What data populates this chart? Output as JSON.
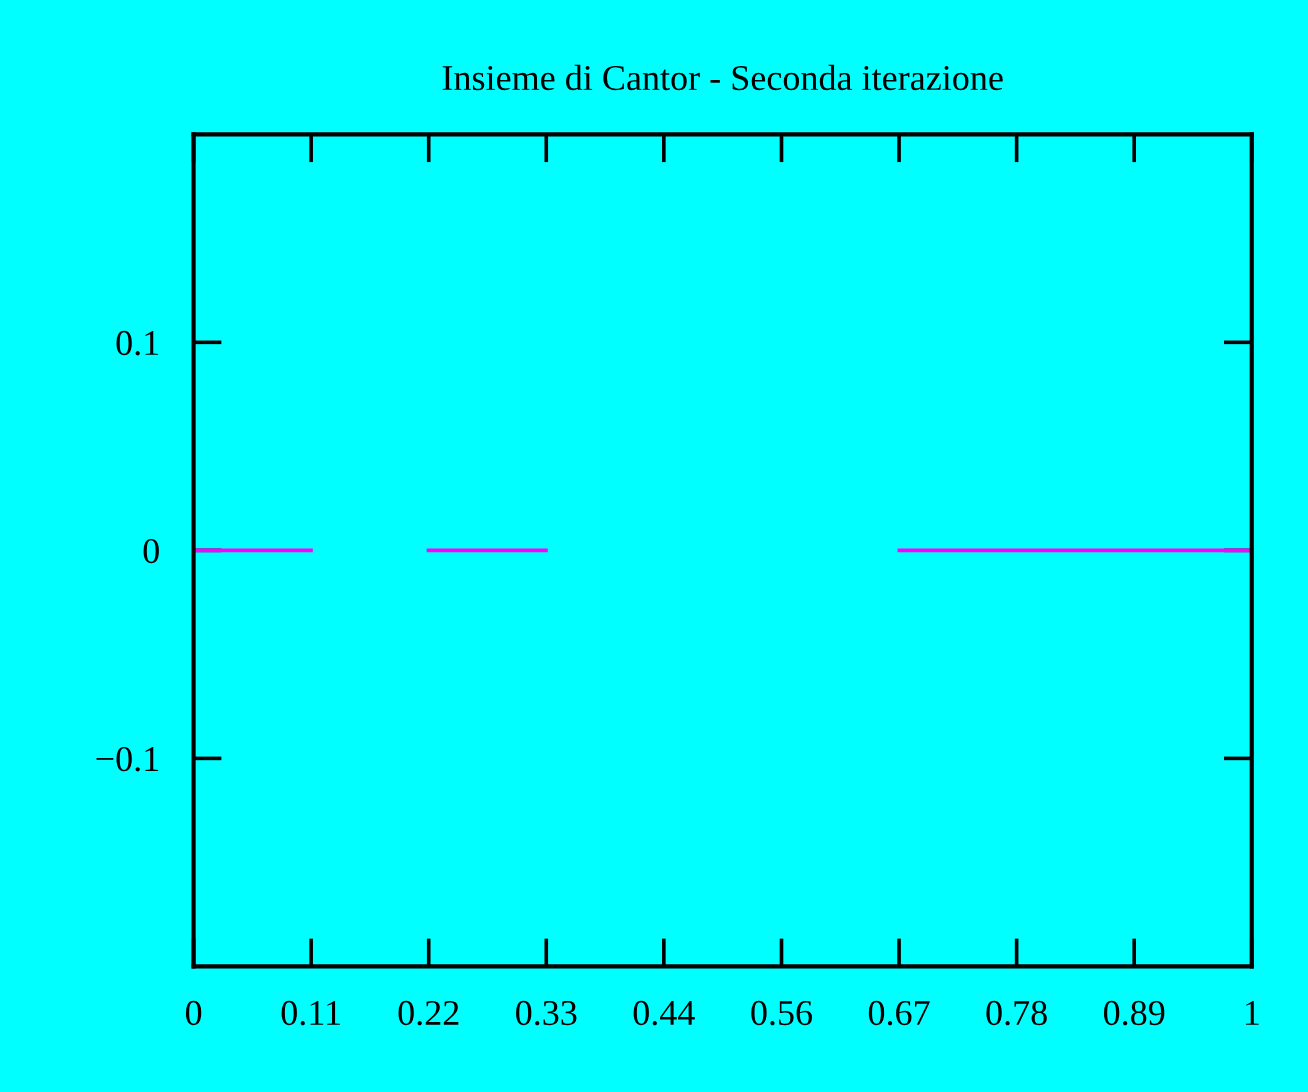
{
  "chart_data": {
    "type": "line",
    "title": "Insieme di Cantor - Seconda iterazione",
    "series": [
      {
        "color": "#ff00ff",
        "x": [
          0,
          0.111
        ],
        "values": [
          0,
          0
        ]
      },
      {
        "color": "#ff00ff",
        "x": [
          0.222,
          0.333
        ],
        "values": [
          0,
          0
        ]
      },
      {
        "color": "#ff00ff",
        "x": [
          0.667,
          1
        ],
        "values": [
          0,
          0
        ]
      }
    ],
    "xlim": [
      0,
      1
    ],
    "ylim": [
      -0.2,
      0.2
    ],
    "xticks": [
      0,
      {
        "value": 0.1111,
        "label": "0.11"
      },
      {
        "value": 0.2222,
        "label": "0.22"
      },
      {
        "value": 0.3333,
        "label": "0.33"
      },
      {
        "value": 0.4444,
        "label": "0.44"
      },
      {
        "value": 0.5556,
        "label": "0.56"
      },
      {
        "value": 0.6667,
        "label": "0.67"
      },
      {
        "value": 0.7778,
        "label": "0.78"
      },
      {
        "value": 0.8889,
        "label": "0.89"
      },
      1
    ],
    "yticks": [
      {
        "value": -0.1,
        "label": "−0.1"
      },
      0,
      0.1
    ],
    "grid": false,
    "legend": false,
    "marker": "none",
    "line_style": "solid"
  }
}
